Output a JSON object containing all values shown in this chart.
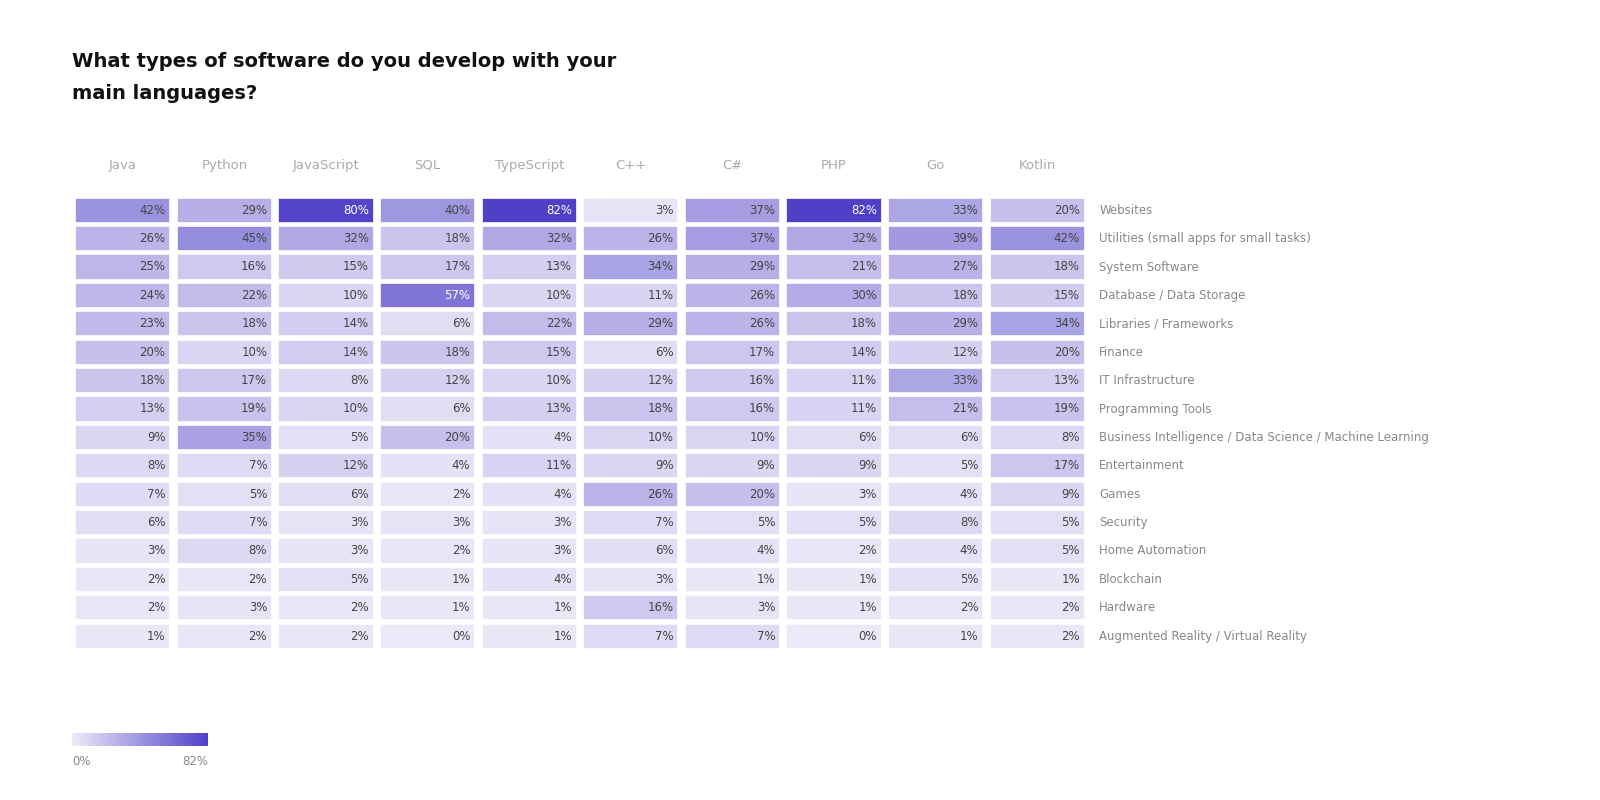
{
  "title_line1": "What types of software do you develop with your",
  "title_line2": "main languages?",
  "columns": [
    "Java",
    "Python",
    "JavaScript",
    "SQL",
    "TypeScript",
    "C++",
    "C#",
    "PHP",
    "Go",
    "Kotlin"
  ],
  "rows": [
    "Websites",
    "Utilities (small apps for small tasks)",
    "System Software",
    "Database / Data Storage",
    "Libraries / Frameworks",
    "Finance",
    "IT Infrastructure",
    "Programming Tools",
    "Business Intelligence / Data Science / Machine Learning",
    "Entertainment",
    "Games",
    "Security",
    "Home Automation",
    "Blockchain",
    "Hardware",
    "Augmented Reality / Virtual Reality"
  ],
  "data": [
    [
      42,
      29,
      80,
      40,
      82,
      3,
      37,
      82,
      33,
      20
    ],
    [
      26,
      45,
      32,
      18,
      32,
      26,
      37,
      32,
      39,
      42
    ],
    [
      25,
      16,
      15,
      17,
      13,
      34,
      29,
      21,
      27,
      18
    ],
    [
      24,
      22,
      10,
      57,
      10,
      11,
      26,
      30,
      18,
      15
    ],
    [
      23,
      18,
      14,
      6,
      22,
      29,
      26,
      18,
      29,
      34
    ],
    [
      20,
      10,
      14,
      18,
      15,
      6,
      17,
      14,
      12,
      20
    ],
    [
      18,
      17,
      8,
      12,
      10,
      12,
      16,
      11,
      33,
      13
    ],
    [
      13,
      19,
      10,
      6,
      13,
      18,
      16,
      11,
      21,
      19
    ],
    [
      9,
      35,
      5,
      20,
      4,
      10,
      10,
      6,
      6,
      8
    ],
    [
      8,
      7,
      12,
      4,
      11,
      9,
      9,
      9,
      5,
      17
    ],
    [
      7,
      5,
      6,
      2,
      4,
      26,
      20,
      3,
      4,
      9
    ],
    [
      6,
      7,
      3,
      3,
      3,
      7,
      5,
      5,
      8,
      5
    ],
    [
      3,
      8,
      3,
      2,
      3,
      6,
      4,
      2,
      4,
      5
    ],
    [
      2,
      2,
      5,
      1,
      4,
      3,
      1,
      1,
      5,
      1
    ],
    [
      2,
      3,
      2,
      1,
      1,
      16,
      3,
      1,
      2,
      2
    ],
    [
      1,
      2,
      2,
      0,
      1,
      7,
      7,
      0,
      1,
      2
    ]
  ],
  "max_value": 82,
  "color_low": "#eceaf8",
  "color_high": "#5040c8",
  "background_color": "#ffffff",
  "text_color_dark": "#444444",
  "text_color_light": "#ffffff",
  "header_color": "#aaaaaa",
  "row_label_color": "#888888",
  "title_color": "#111111",
  "cell_text_size": 8.5,
  "header_text_size": 9.5,
  "row_label_text_size": 8.5,
  "title_text_size": 14,
  "legend_label_0": "0%",
  "legend_label_max": "82%"
}
